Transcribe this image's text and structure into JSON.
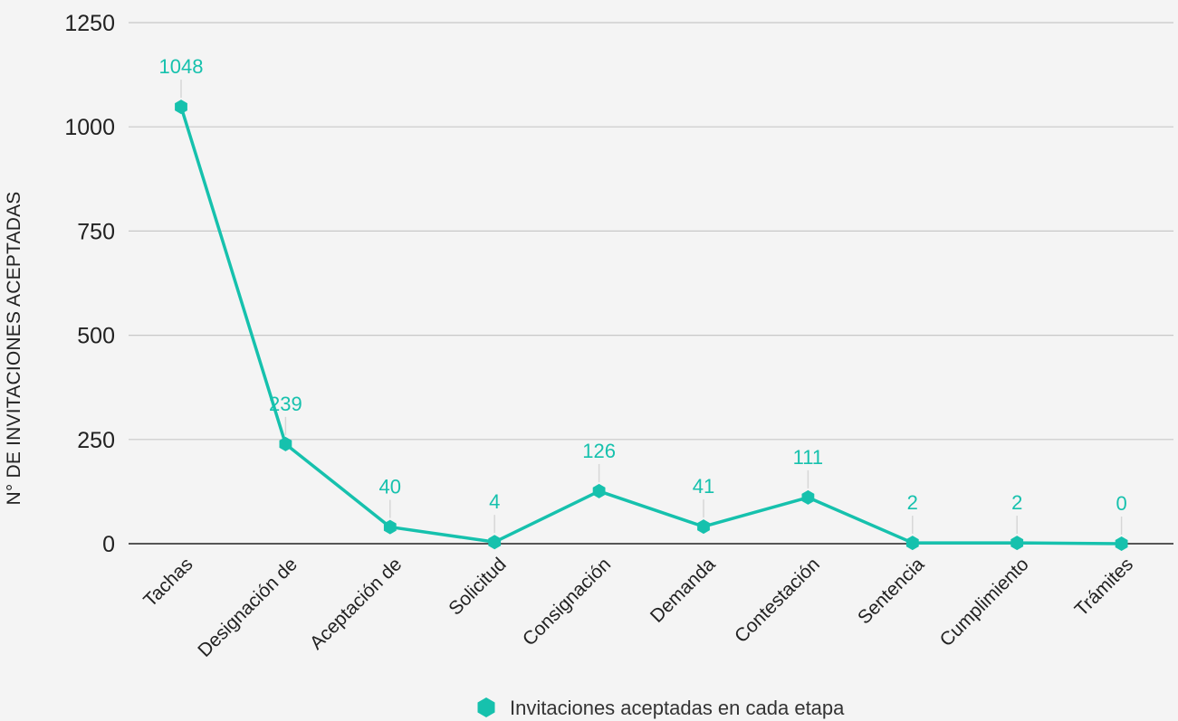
{
  "chart_data": {
    "type": "line",
    "title": "",
    "xlabel": "",
    "ylabel": "N° DE INVITACIONES ACEPTADAS",
    "ylim": [
      0,
      1250
    ],
    "yticks": [
      0,
      250,
      500,
      750,
      1000,
      1250
    ],
    "grid": true,
    "legend_position": "bottom",
    "categories": [
      "Tachas",
      "Designación de",
      "Aceptación de",
      "Solicitud",
      "Consignación",
      "Demanda",
      "Contestación",
      "Sentencia",
      "Cumplimiento",
      "Trámites"
    ],
    "series": [
      {
        "name": "Invitaciones aceptadas en cada etapa",
        "color": "#16c1ad",
        "marker": "hexagon",
        "values": [
          1048,
          239,
          40,
          4,
          126,
          41,
          111,
          2,
          2,
          0
        ]
      }
    ]
  }
}
